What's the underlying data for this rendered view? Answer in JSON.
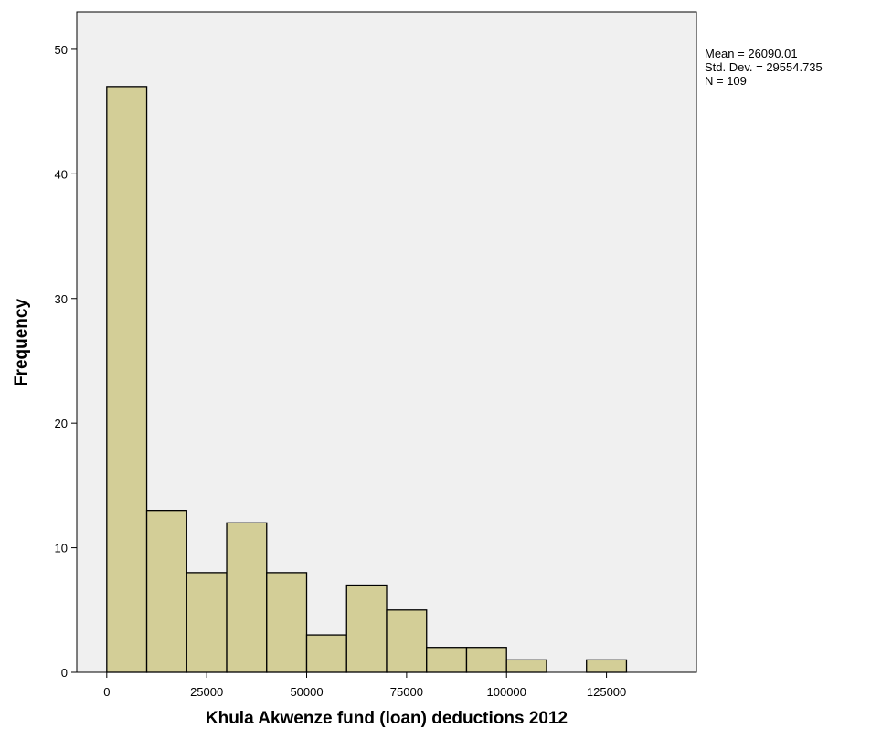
{
  "chart_data": {
    "type": "bar",
    "subtype": "histogram",
    "bin_width": 10000,
    "bins": [
      {
        "start": 0,
        "end": 10000,
        "count": 47
      },
      {
        "start": 10000,
        "end": 20000,
        "count": 13
      },
      {
        "start": 20000,
        "end": 30000,
        "count": 8
      },
      {
        "start": 30000,
        "end": 40000,
        "count": 12
      },
      {
        "start": 40000,
        "end": 50000,
        "count": 8
      },
      {
        "start": 50000,
        "end": 60000,
        "count": 3
      },
      {
        "start": 60000,
        "end": 70000,
        "count": 7
      },
      {
        "start": 70000,
        "end": 80000,
        "count": 5
      },
      {
        "start": 80000,
        "end": 90000,
        "count": 2
      },
      {
        "start": 90000,
        "end": 100000,
        "count": 2
      },
      {
        "start": 100000,
        "end": 110000,
        "count": 1
      },
      {
        "start": 110000,
        "end": 120000,
        "count": 0
      },
      {
        "start": 120000,
        "end": 130000,
        "count": 1
      }
    ],
    "xlabel": "Khula Akwenze fund (loan) deductions 2012",
    "ylabel": "Frequency",
    "xlim": [
      -7500,
      147500
    ],
    "ylim": [
      0,
      53
    ],
    "xticks": [
      0,
      25000,
      50000,
      75000,
      100000,
      125000
    ],
    "yticks": [
      0,
      10,
      20,
      30,
      40,
      50
    ],
    "stats": [
      "Mean = 26090.01",
      "Std. Dev. = 29554.735",
      "N = 109"
    ],
    "legend_position": "top-right, outside plot",
    "grid": false,
    "colors": {
      "bar_fill": "#D3CE97",
      "bar_stroke": "#000000",
      "plot_background": "#F0F0F0",
      "page_background": "#FFFFFF"
    }
  }
}
